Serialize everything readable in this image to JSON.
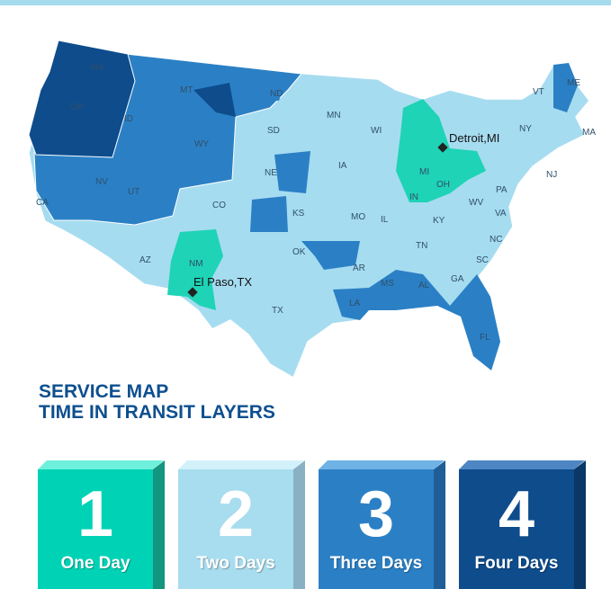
{
  "colors": {
    "one_day": "#1fd3b6",
    "two_days": "#a6dcf0",
    "three_days": "#2b80c5",
    "four_days": "#0e4c8c"
  },
  "map": {
    "states": [
      "WA",
      "OR",
      "CA",
      "ID",
      "NV",
      "MT",
      "WY",
      "UT",
      "AZ",
      "CO",
      "NM",
      "ND",
      "SD",
      "NE",
      "KS",
      "OK",
      "TX",
      "MN",
      "IA",
      "MO",
      "AR",
      "LA",
      "WI",
      "IL",
      "MI",
      "IN",
      "OH",
      "KY",
      "TN",
      "MS",
      "AL",
      "GA",
      "FL",
      "SC",
      "NC",
      "VA",
      "WV",
      "PA",
      "NY",
      "VT",
      "ME",
      "MA",
      "NJ"
    ],
    "cities": [
      {
        "name": "Detroit,MI"
      },
      {
        "name": "El Paso,TX"
      }
    ]
  },
  "title": {
    "line1": "SERVICE MAP",
    "line2": "TIME IN TRANSIT LAYERS"
  },
  "legend": [
    {
      "number": "1",
      "label": "One Day"
    },
    {
      "number": "2",
      "label": "Two Days"
    },
    {
      "number": "3",
      "label": "Three Days"
    },
    {
      "number": "4",
      "label": "Four Days"
    }
  ]
}
